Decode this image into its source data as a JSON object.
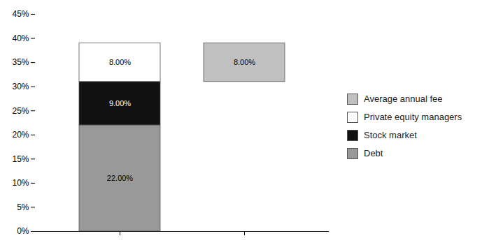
{
  "chart_data": {
    "type": "bar",
    "stacked": true,
    "data_labels": true,
    "legend": "right",
    "tick_labels": "y",
    "categories": [
      null,
      null
    ],
    "series": [
      {
        "name": "Debt",
        "color": "#999999",
        "values": [
          0.22,
          null
        ],
        "value_labels": [
          "22.00%",
          null
        ]
      },
      {
        "name": "Stock market",
        "color": "#111111",
        "values": [
          0.09,
          null
        ],
        "value_labels": [
          "9.00%",
          null
        ]
      },
      {
        "name": "Private equity managers",
        "color": "#ffffff",
        "values": [
          0.08,
          null
        ],
        "value_labels": [
          "8.00%",
          null
        ]
      },
      {
        "name": "Average annual fee",
        "color": "#c0c0c0",
        "values": [
          null,
          0.08
        ],
        "bottoms": [
          null,
          0.31
        ],
        "value_labels": [
          null,
          "8.00%"
        ]
      }
    ],
    "ylim": [
      0,
      0.45
    ],
    "yticks": [
      {
        "value": 0.0,
        "label": "0%"
      },
      {
        "value": 0.05,
        "label": "5%"
      },
      {
        "value": 0.1,
        "label": "10%"
      },
      {
        "value": 0.15,
        "label": "15%"
      },
      {
        "value": 0.2,
        "label": "20%"
      },
      {
        "value": 0.25,
        "label": "25%"
      },
      {
        "value": 0.3,
        "label": "30%"
      },
      {
        "value": 0.35,
        "label": "35%"
      },
      {
        "value": 0.4,
        "label": "40%"
      },
      {
        "value": 0.45,
        "label": "45%"
      }
    ]
  }
}
